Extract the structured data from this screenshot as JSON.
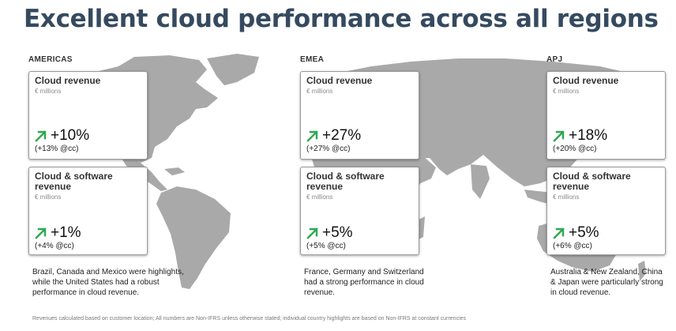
{
  "title": "Excellent cloud performance across all regions",
  "regions": [
    {
      "label": "AMERICAS",
      "cards": [
        {
          "title": "Cloud revenue",
          "subtitle": "€ millions",
          "value": "+10%",
          "cc": "(+13% @cc)"
        },
        {
          "title": "Cloud & software revenue",
          "subtitle": "€ millions",
          "value": "+1%",
          "cc": "(+4% @cc)"
        }
      ],
      "description": "Brazil, Canada and Mexico were highlights, while the United States had a robust performance in cloud revenue."
    },
    {
      "label": "EMEA",
      "cards": [
        {
          "title": "Cloud revenue",
          "subtitle": "€ millions",
          "value": "+27%",
          "cc": "(+27% @cc)"
        },
        {
          "title": "Cloud & software revenue",
          "subtitle": "€ millions",
          "value": "+5%",
          "cc": "(+5% @cc)"
        }
      ],
      "description": "France, Germany and Switzerland had a strong performance in cloud revenue."
    },
    {
      "label": "APJ",
      "cards": [
        {
          "title": "Cloud revenue",
          "subtitle": "€ millions",
          "value": "+18%",
          "cc": "(+20% @cc)"
        },
        {
          "title": "Cloud & software revenue",
          "subtitle": "€ millions",
          "value": "+5%",
          "cc": "(+6% @cc)"
        }
      ],
      "description": "Australia & New Zealand, China & Japan were particularly strong in cloud revenue."
    }
  ],
  "footnote": "Revenues calculated based on customer location; All numbers are Non-IFRS unless otherwise stated; individual country highlights are based on Non-IFRS at constant currencies",
  "colors": {
    "title": "#354a5f",
    "map": "#a9a9a9",
    "arrow": "#2fa84f",
    "card_border": "#9a9a9a"
  },
  "icons": {
    "growth": "trend-up-arrow-icon",
    "map": "world-map"
  }
}
